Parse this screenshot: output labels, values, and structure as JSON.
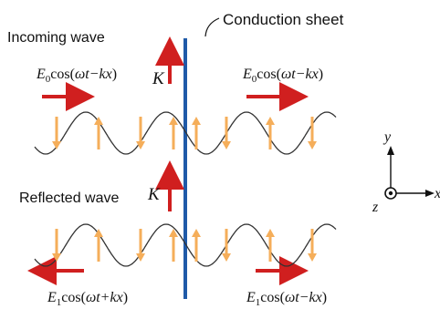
{
  "labels": {
    "conduction_sheet": "Conduction sheet",
    "incoming_wave": "Incoming wave",
    "reflected_wave": "Reflected wave",
    "current_symbol": "K"
  },
  "expressions": {
    "incoming_left": {
      "amp": "E",
      "sub": "0",
      "fn": "cos(",
      "phase": "ωt−kx",
      "close": ")"
    },
    "incoming_right": {
      "amp": "E",
      "sub": "0",
      "fn": "cos(",
      "phase": "ωt−kx",
      "close": ")"
    },
    "reflected_left": {
      "amp": "E",
      "sub": "1",
      "fn": "cos(",
      "phase": "ωt+kx",
      "close": ")"
    },
    "reflected_right": {
      "amp": "E",
      "sub": "1",
      "fn": "cos(",
      "phase": "ωt−kx",
      "close": ")"
    }
  },
  "axes": {
    "y": "y",
    "x": "x",
    "z": "z"
  },
  "colors": {
    "sheet": "#1f5aa8",
    "direction_arrow": "#d01f1f",
    "field_arrow": "#f5ae5a",
    "wave": "#333333"
  }
}
